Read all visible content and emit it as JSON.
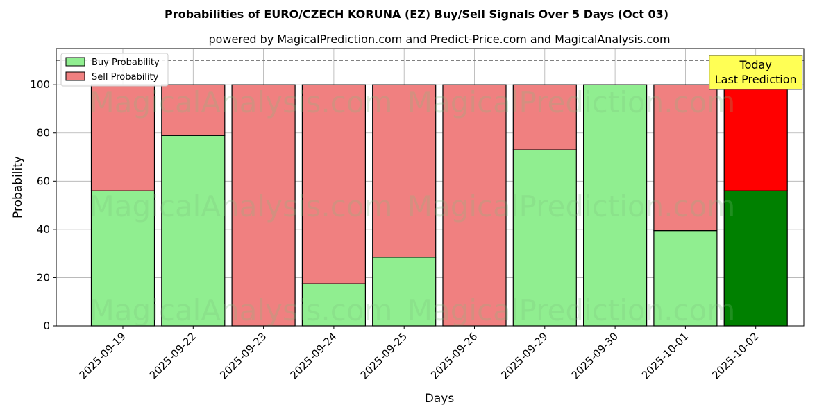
{
  "chart_data": {
    "type": "bar",
    "stacked": true,
    "title": "Probabilities of EURO/CZECH KORUNA (EZ) Buy/Sell Signals Over 5 Days (Oct 03)",
    "subtitle": "powered by MagicalPrediction.com and Predict-Price.com and MagicalAnalysis.com",
    "xlabel": "Days",
    "ylabel": "Probability",
    "ylim": [
      0,
      115
    ],
    "yticks": [
      0,
      20,
      40,
      60,
      80,
      100
    ],
    "grid": true,
    "legend_position": "top-left",
    "categories": [
      "2025-09-19",
      "2025-09-22",
      "2025-09-23",
      "2025-09-24",
      "2025-09-25",
      "2025-09-26",
      "2025-09-29",
      "2025-09-30",
      "2025-10-01",
      "2025-10-02"
    ],
    "series": [
      {
        "name": "Buy Probability",
        "values": [
          56,
          79,
          0,
          17.5,
          28.5,
          0,
          73,
          100,
          39.5,
          56
        ],
        "color": "#90ee90",
        "highlight_color": "#008000"
      },
      {
        "name": "Sell Probability",
        "values": [
          44,
          21,
          100,
          82.5,
          71.5,
          100,
          27,
          0,
          60.5,
          44
        ],
        "color": "#f08080",
        "highlight_color": "#ff0000"
      }
    ],
    "highlight_index": 9,
    "reference_line": {
      "y": 110,
      "style": "dashed",
      "color": "#808080"
    },
    "annotation": {
      "lines": [
        "Today",
        "Last Prediction"
      ],
      "background": "#ffff55"
    },
    "watermarks": [
      "MagicalAnalysis.com",
      "MagicalPrediction.com",
      "MagicalAnalysis.com",
      "MagicalPrediction.com",
      "MagicalAnalysis.com",
      "MagicalPrediction.com"
    ]
  }
}
